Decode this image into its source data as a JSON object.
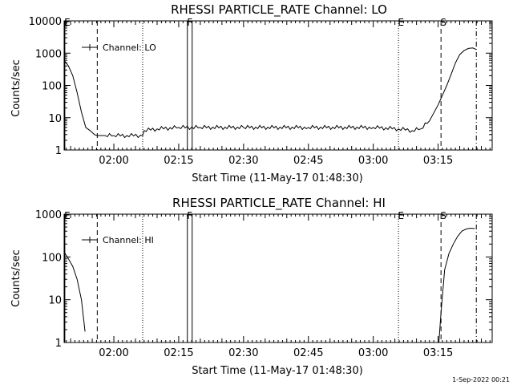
{
  "chart_data": [
    {
      "type": "line",
      "title": "RHESSI PARTICLE_RATE Channel: LO",
      "xlabel": "Start Time (11-May-17 01:48:30)",
      "ylabel": "Counts/sec",
      "yscale": "log",
      "xlim": [
        "01:48:30",
        "03:27:30"
      ],
      "ylim": [
        1,
        10000
      ],
      "xticks": [
        "02:00",
        "02:15",
        "02:30",
        "02:45",
        "03:00",
        "03:15"
      ],
      "yticks": [
        "1",
        "10",
        "100",
        "1000",
        "10000"
      ],
      "legend": {
        "label": "Channel: LO",
        "placement": "top-left"
      },
      "markers": [
        {
          "label": "E",
          "time": "01:48:40",
          "style": "solid"
        },
        {
          "label": "",
          "time": "01:56:10",
          "style": "dashed"
        },
        {
          "label": "",
          "time": "02:06:40",
          "style": "dotted"
        },
        {
          "label": "F",
          "time": "02:17:00",
          "style": "solid-double"
        },
        {
          "label": "E",
          "time": "03:05:50",
          "style": "dotted"
        },
        {
          "label": "S",
          "time": "03:15:40",
          "style": "dashed"
        },
        {
          "label": "",
          "time": "03:23:50",
          "style": "dashdot"
        }
      ],
      "series": [
        {
          "x": [
            "01:48:30",
            "01:49:30",
            "01:50:30",
            "01:51:30",
            "01:52:30",
            "01:53:30",
            "01:54:30",
            "01:55:30",
            "01:56:10",
            "01:58:00",
            "02:00:00",
            "02:03:00",
            "02:06:40",
            "02:07:00",
            "02:10:00",
            "02:15:00",
            "02:20:00",
            "02:30:00",
            "02:45:00",
            "03:00:00",
            "03:05:50",
            "03:09:00",
            "03:11:00",
            "03:13:00",
            "03:15:00",
            "03:16:00",
            "03:17:00",
            "03:18:00",
            "03:19:00",
            "03:20:00",
            "03:21:00",
            "03:22:00",
            "03:23:00",
            "03:23:50"
          ],
          "y": [
            600,
            400,
            200,
            60,
            15,
            5,
            4,
            3,
            2.8,
            2.8,
            2.8,
            2.8,
            2.8,
            4,
            4.5,
            5,
            5,
            5,
            5,
            5,
            4.5,
            4,
            4.5,
            8,
            25,
            50,
            100,
            220,
            500,
            900,
            1200,
            1400,
            1450,
            1300
          ]
        }
      ]
    },
    {
      "type": "line",
      "title": "RHESSI PARTICLE_RATE Channel: HI",
      "xlabel": "Start Time (11-May-17 01:48:30)",
      "ylabel": "Counts/sec",
      "yscale": "log",
      "xlim": [
        "01:48:30",
        "03:27:30"
      ],
      "ylim": [
        1,
        1000
      ],
      "xticks": [
        "02:00",
        "02:15",
        "02:30",
        "02:45",
        "03:00",
        "03:15"
      ],
      "yticks": [
        "1",
        "10",
        "100",
        "1000"
      ],
      "legend": {
        "label": "Channel: HI",
        "placement": "top-left"
      },
      "markers": [
        {
          "label": "E",
          "time": "01:48:40",
          "style": "solid"
        },
        {
          "label": "",
          "time": "01:56:10",
          "style": "dashed"
        },
        {
          "label": "",
          "time": "02:06:40",
          "style": "dotted"
        },
        {
          "label": "F",
          "time": "02:17:00",
          "style": "solid-double"
        },
        {
          "label": "E",
          "time": "03:05:50",
          "style": "dotted"
        },
        {
          "label": "S",
          "time": "03:15:40",
          "style": "dashed"
        },
        {
          "label": "",
          "time": "03:23:50",
          "style": "dashdot"
        }
      ],
      "series": [
        {
          "x": [
            "01:48:30",
            "01:49:30",
            "01:50:30",
            "01:51:30",
            "01:52:30",
            "01:53:20",
            "03:15:10",
            "03:15:40",
            "03:16:30",
            "03:17:30",
            "03:18:30",
            "03:19:30",
            "03:20:30",
            "03:21:30",
            "03:22:30",
            "03:23:30"
          ],
          "y": [
            130,
            90,
            60,
            30,
            10,
            1.8,
            1,
            5,
            50,
            120,
            200,
            300,
            400,
            450,
            470,
            460
          ]
        }
      ]
    }
  ],
  "footer": {
    "timestamp": "1-Sep-2022 00:21"
  }
}
